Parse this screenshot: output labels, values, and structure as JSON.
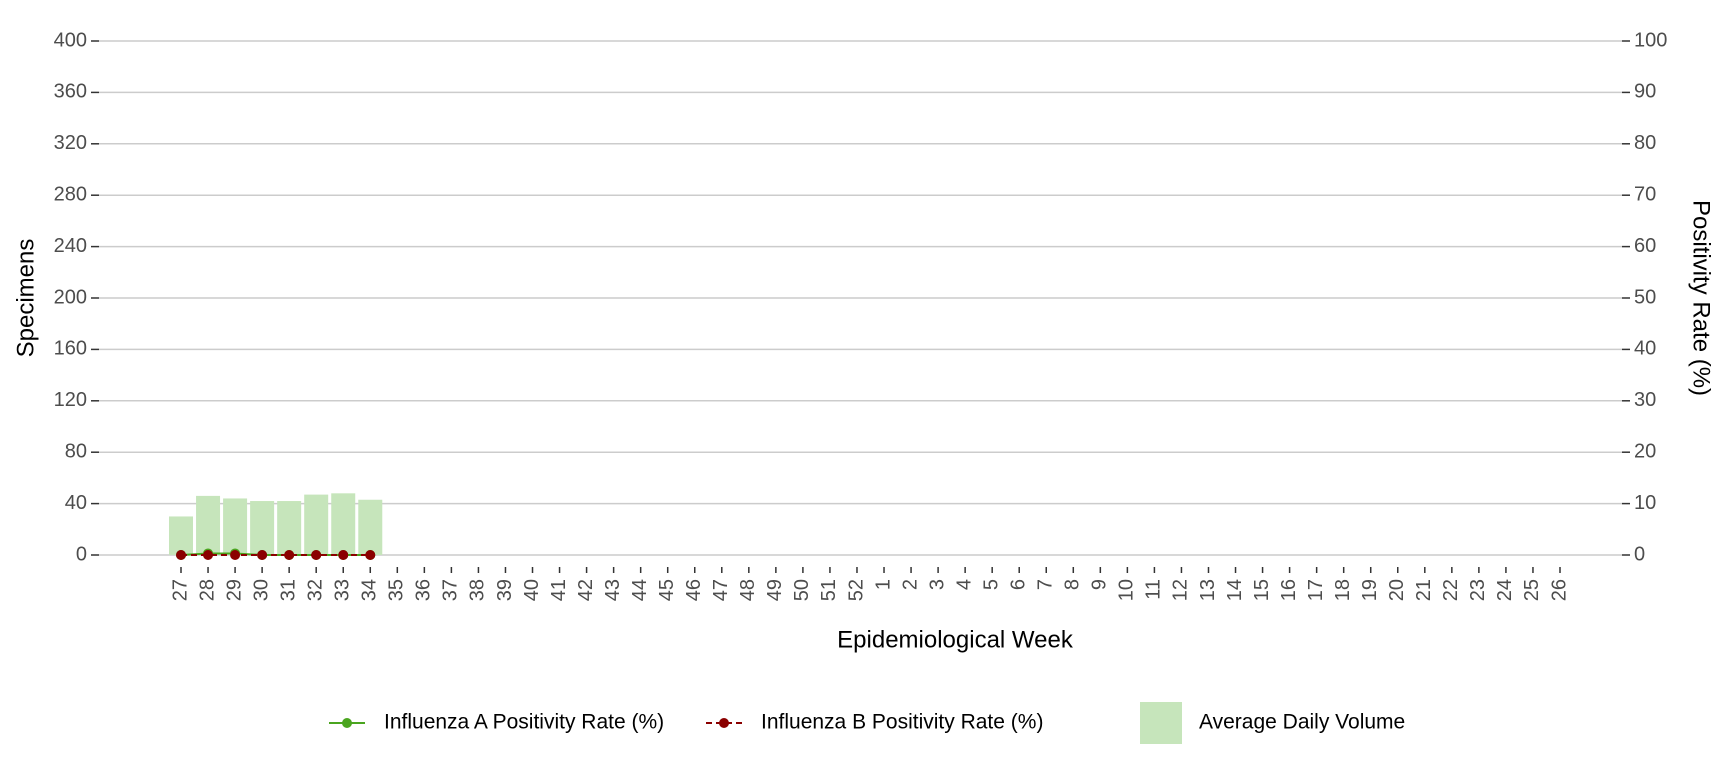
{
  "chart_data": {
    "type": "bar-line",
    "x_label": "Epidemiological Week",
    "y_label": "Specimens",
    "y2_label": "Positivity Rate (%)",
    "categories": [
      "27",
      "28",
      "29",
      "30",
      "31",
      "32",
      "33",
      "34",
      "35",
      "36",
      "37",
      "38",
      "39",
      "40",
      "41",
      "42",
      "43",
      "44",
      "45",
      "46",
      "47",
      "48",
      "49",
      "50",
      "51",
      "52",
      "1",
      "2",
      "3",
      "4",
      "5",
      "6",
      "7",
      "8",
      "9",
      "10",
      "11",
      "12",
      "13",
      "14",
      "15",
      "16",
      "17",
      "18",
      "19",
      "20",
      "21",
      "22",
      "23",
      "24",
      "25",
      "26"
    ],
    "series": [
      {
        "name": "Influenza A Positivity Rate (%)",
        "type": "line",
        "axis": "y2",
        "color": "#4aa51f",
        "dash": false,
        "values": [
          0,
          0.3,
          0.3,
          0,
          0,
          0,
          0,
          0,
          null,
          null,
          null,
          null,
          null,
          null,
          null,
          null,
          null,
          null,
          null,
          null,
          null,
          null,
          null,
          null,
          null,
          null,
          null,
          null,
          null,
          null,
          null,
          null,
          null,
          null,
          null,
          null,
          null,
          null,
          null,
          null,
          null,
          null,
          null,
          null,
          null,
          null,
          null,
          null,
          null,
          null,
          null,
          null
        ]
      },
      {
        "name": "Influenza B Positivity Rate (%)",
        "type": "line",
        "axis": "y2",
        "color": "#8b0000",
        "dash": true,
        "values": [
          0,
          0,
          0,
          0,
          0,
          0,
          0,
          0,
          null,
          null,
          null,
          null,
          null,
          null,
          null,
          null,
          null,
          null,
          null,
          null,
          null,
          null,
          null,
          null,
          null,
          null,
          null,
          null,
          null,
          null,
          null,
          null,
          null,
          null,
          null,
          null,
          null,
          null,
          null,
          null,
          null,
          null,
          null,
          null,
          null,
          null,
          null,
          null,
          null,
          null,
          null,
          null
        ]
      },
      {
        "name": "Average Daily Volume",
        "type": "bar",
        "axis": "y",
        "color": "#c6e5bb",
        "values": [
          30,
          46,
          44,
          42,
          42,
          47,
          48,
          43,
          null,
          null,
          null,
          null,
          null,
          null,
          null,
          null,
          null,
          null,
          null,
          null,
          null,
          null,
          null,
          null,
          null,
          null,
          null,
          null,
          null,
          null,
          null,
          null,
          null,
          null,
          null,
          null,
          null,
          null,
          null,
          null,
          null,
          null,
          null,
          null,
          null,
          null,
          null,
          null,
          null,
          null,
          null,
          null
        ]
      }
    ],
    "ylim": [
      0,
      400
    ],
    "yticks": [
      0,
      40,
      80,
      120,
      160,
      200,
      240,
      280,
      320,
      360,
      400
    ],
    "y2lim": [
      0,
      100
    ],
    "y2ticks": [
      0,
      10,
      20,
      30,
      40,
      50,
      60,
      70,
      80,
      90,
      100
    ],
    "grid": true,
    "legend": "bottom"
  }
}
